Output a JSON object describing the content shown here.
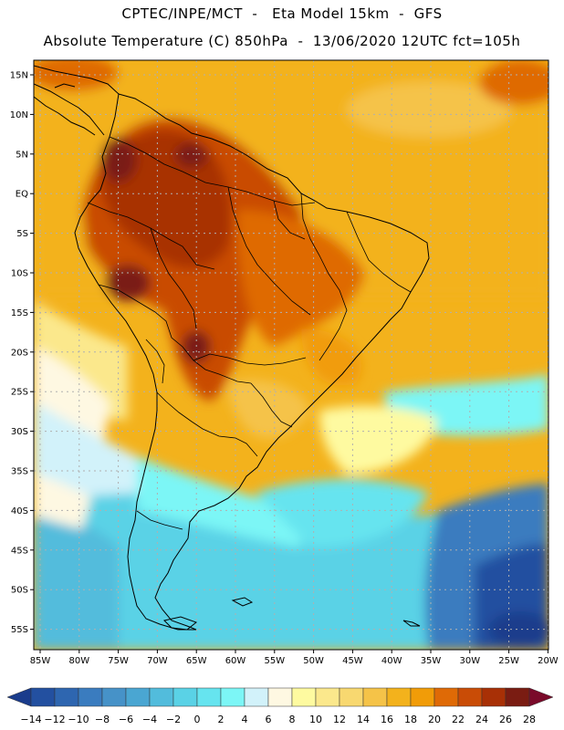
{
  "title": {
    "line1": "CPTEC/INPE/MCT  -   Eta Model 15km  -  GFS",
    "line2": "Absolute Temperature (C) 850hPa  -  13/06/2020 12UTC fct=105h"
  },
  "map": {
    "lat_labels": [
      "15N",
      "10N",
      "5N",
      "EQ",
      "5S",
      "10S",
      "15S",
      "20S",
      "25S",
      "30S",
      "35S",
      "40S",
      "45S",
      "50S",
      "55S"
    ],
    "lon_labels": [
      "85W",
      "80W",
      "75W",
      "70W",
      "65W",
      "60W",
      "55W",
      "50W",
      "45W",
      "40W",
      "35W",
      "30W",
      "25W",
      "20W"
    ]
  },
  "colorbar": {
    "labels": [
      "-14",
      "-12",
      "-10",
      "-8",
      "-6",
      "-4",
      "-2",
      "0",
      "2",
      "4",
      "6",
      "8",
      "10",
      "12",
      "14",
      "16",
      "18",
      "20",
      "22",
      "24",
      "26",
      "28"
    ],
    "colors": [
      "#1a3c8c",
      "#2350a0",
      "#2e66b0",
      "#3a7cbf",
      "#4692c8",
      "#4aa6d2",
      "#52bcdc",
      "#5ad2e6",
      "#66e4ef",
      "#7cf6f6",
      "#d2f2fa",
      "#fef8e2",
      "#fefaa0",
      "#fbe88c",
      "#f8d870",
      "#f5c348",
      "#f3b21c",
      "#f19c08",
      "#df6a06",
      "#c94c06",
      "#a83006",
      "#7a1c12",
      "#7a0a2a"
    ]
  }
}
